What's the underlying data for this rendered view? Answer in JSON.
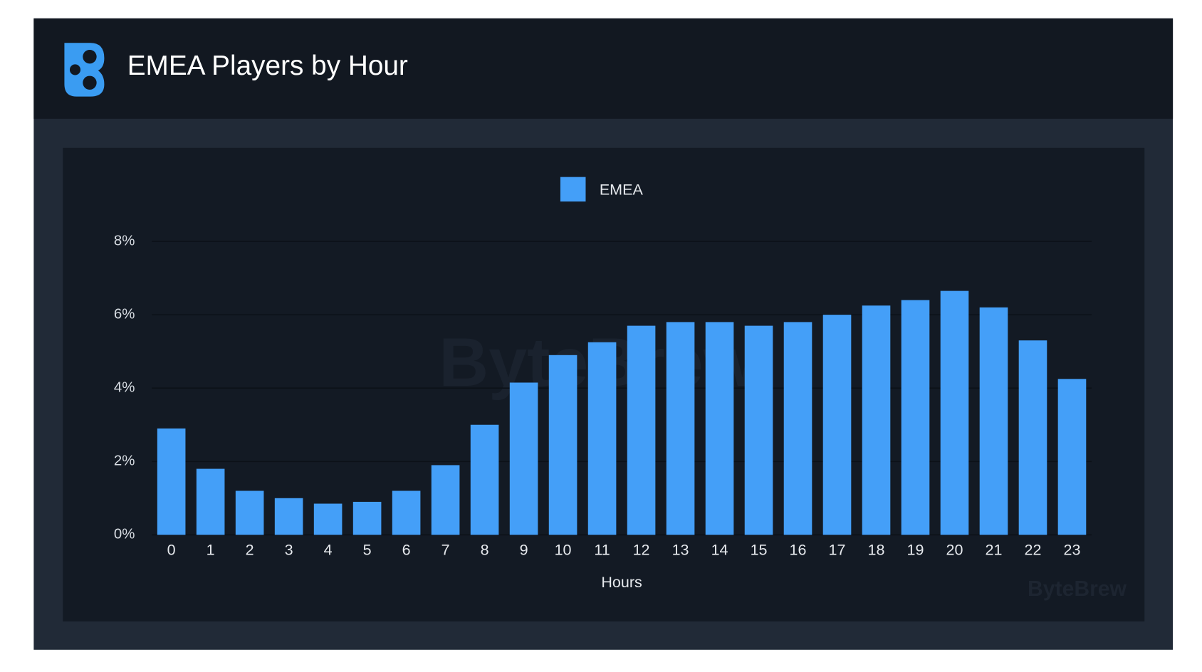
{
  "header": {
    "title": "EMEA Players by Hour"
  },
  "watermark": "ByteBrew",
  "chart_data": {
    "type": "bar",
    "categories": [
      "0",
      "1",
      "2",
      "3",
      "4",
      "5",
      "6",
      "7",
      "8",
      "9",
      "10",
      "11",
      "12",
      "13",
      "14",
      "15",
      "16",
      "17",
      "18",
      "19",
      "20",
      "21",
      "22",
      "23"
    ],
    "series": [
      {
        "name": "EMEA",
        "color": "#449ff8",
        "values": [
          2.9,
          1.8,
          1.2,
          1.0,
          0.85,
          0.9,
          1.2,
          1.9,
          3.0,
          4.15,
          4.9,
          5.25,
          5.7,
          5.8,
          5.8,
          5.7,
          5.8,
          6.0,
          6.25,
          6.4,
          6.65,
          6.2,
          5.3,
          4.25
        ]
      }
    ],
    "xlabel": "Hours",
    "ylim": [
      0,
      8
    ],
    "yticks": [
      {
        "value": 0,
        "label": "0%"
      },
      {
        "value": 2,
        "label": "2%"
      },
      {
        "value": 4,
        "label": "4%"
      },
      {
        "value": 6,
        "label": "6%"
      },
      {
        "value": 8,
        "label": "8%"
      }
    ],
    "grid": true,
    "legend": "top"
  }
}
